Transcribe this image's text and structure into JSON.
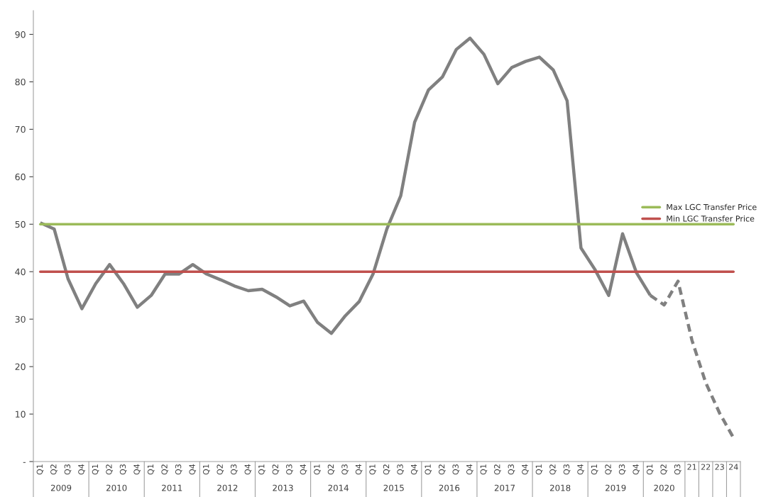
{
  "chart_data": {
    "type": "line",
    "categories": [
      "Q1",
      "Q2",
      "Q3",
      "Q4",
      "Q1",
      "Q2",
      "Q3",
      "Q4",
      "Q1",
      "Q2",
      "Q3",
      "Q4",
      "Q1",
      "Q2",
      "Q3",
      "Q4",
      "Q1",
      "Q2",
      "Q3",
      "Q4",
      "Q1",
      "Q2",
      "Q3",
      "Q4",
      "Q1",
      "Q2",
      "Q3",
      "Q4",
      "Q1",
      "Q2",
      "Q3",
      "Q4",
      "Q1",
      "Q2",
      "Q3",
      "Q4",
      "Q1",
      "Q2",
      "Q3",
      "Q4",
      "Q1",
      "Q2",
      "Q3",
      "Q4",
      "Q1",
      "Q2",
      "Q3",
      "21",
      "22",
      "23",
      "24"
    ],
    "series": [
      {
        "color": "#808080",
        "line_style": "solid",
        "values": [
          50.3,
          49,
          38.5,
          32.2,
          37.5,
          41.5,
          37.5,
          32.5,
          35,
          39.5,
          39.5,
          41.5,
          39.5,
          38.3,
          37,
          36,
          36.3,
          34.7,
          32.8,
          33.8,
          29.3,
          27,
          30.7,
          33.7,
          39.5,
          49,
          56,
          71.5,
          78.3,
          81,
          86.8,
          89.2,
          85.8,
          79.6,
          83,
          84.3,
          85.2,
          82.5,
          76,
          45,
          40.5,
          35,
          48,
          39.8,
          35,
          null,
          null,
          null,
          null,
          null,
          null
        ]
      },
      {
        "color": "#808080",
        "line_style": "dashed",
        "values": [
          null,
          null,
          null,
          null,
          null,
          null,
          null,
          null,
          null,
          null,
          null,
          null,
          null,
          null,
          null,
          null,
          null,
          null,
          null,
          null,
          null,
          null,
          null,
          null,
          null,
          null,
          null,
          null,
          null,
          null,
          null,
          null,
          null,
          null,
          null,
          null,
          null,
          null,
          null,
          null,
          null,
          null,
          null,
          null,
          35,
          33,
          38,
          25.6,
          16.6,
          10.2,
          5
        ]
      }
    ],
    "ref_lines": [
      {
        "axis": "y",
        "value": 50,
        "label": "Max LGC Transfer Price",
        "color": "#9bbb59"
      },
      {
        "axis": "y",
        "value": 40,
        "label": "Min LGC Transfer Price",
        "color": "#c0504d"
      }
    ],
    "annotations": [
      "2009",
      "2010",
      "2011",
      "2012",
      "2013",
      "2014",
      "2015",
      "2016",
      "2017",
      "2018",
      "2019",
      "2020"
    ],
    "ylim": [
      0,
      95
    ],
    "yticks": [
      {
        "value": 0,
        "label": "-"
      },
      10,
      20,
      30,
      40,
      50,
      60,
      70,
      80,
      90
    ],
    "grid": false,
    "legend": "right"
  }
}
